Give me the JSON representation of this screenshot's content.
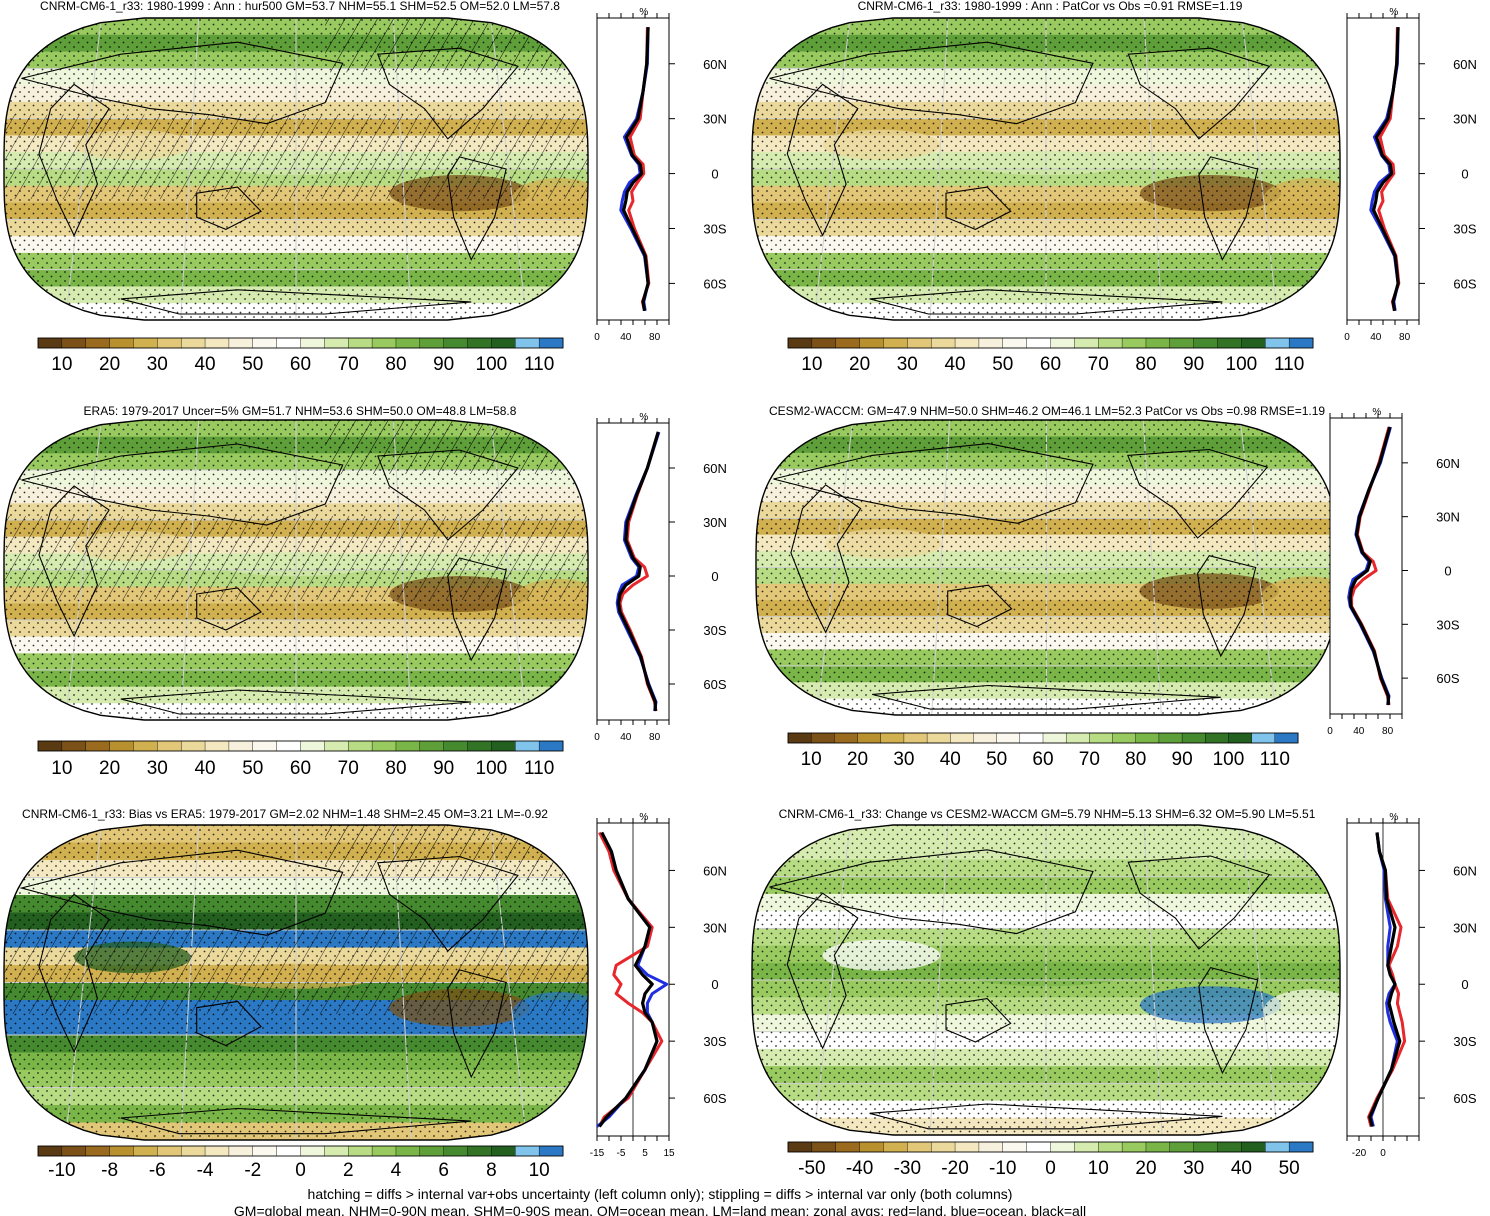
{
  "colors": {
    "land": "#e8262b",
    "ocean": "#1f2ee0",
    "all": "#000000",
    "map_frame": "#000000",
    "hatch": "#000000",
    "stipple": "#000000"
  },
  "palettes": {
    "abs": [
      "#5a3a12",
      "#7b5118",
      "#9a6b1e",
      "#b8902e",
      "#d1b04f",
      "#e1c777",
      "#ebd99b",
      "#f3e8c0",
      "#f7f0dc",
      "#fbf8ef",
      "#ffffff",
      "#eef6dc",
      "#d6ebb0",
      "#b7dc83",
      "#98ca5f",
      "#79b547",
      "#5f9f39",
      "#468a2f",
      "#327326",
      "#235f1f",
      "#80c4ec",
      "#2b79c4"
    ],
    "bias": [
      "#5a3a12",
      "#7b5118",
      "#9a6b1e",
      "#b8902e",
      "#d1b04f",
      "#e1c777",
      "#ebd99b",
      "#f3e8c0",
      "#f7f0dc",
      "#fbf8ef",
      "#ffffff",
      "#eef6dc",
      "#d6ebb0",
      "#b7dc83",
      "#98ca5f",
      "#79b547",
      "#5f9f39",
      "#468a2f",
      "#327326",
      "#235f1f",
      "#80c4ec",
      "#2b79c4"
    ],
    "change": [
      "#5a3a12",
      "#7b5118",
      "#9a6b1e",
      "#b8902e",
      "#d1b04f",
      "#e1c777",
      "#ebd99b",
      "#f3e8c0",
      "#f7f0dc",
      "#fbf8ef",
      "#ffffff",
      "#eef6dc",
      "#d6ebb0",
      "#b7dc83",
      "#98ca5f",
      "#79b547",
      "#5f9f39",
      "#468a2f",
      "#327326",
      "#235f1f",
      "#80c4ec",
      "#2b79c4"
    ]
  },
  "chart_data": [
    {
      "type": "heatmap",
      "projection": "Robinson",
      "title": "CNRM-CM6-1_r33: 1980-1999 : Ann : hur500 GM=53.7 NHM=55.1 SHM=52.5 OM=52.0 LM=57.8",
      "colorbar_ticks": [
        "10",
        "20",
        "30",
        "40",
        "50",
        "60",
        "70",
        "80",
        "90",
        "100",
        "110"
      ],
      "hatching": true,
      "stippling": true,
      "zonal": {
        "type": "line",
        "unit": "%",
        "xlim": [
          0,
          100
        ],
        "xticks": [
          "0",
          "40",
          "80"
        ],
        "ylim": [
          -80,
          85
        ],
        "lat_ticks": [
          "60N",
          "30N",
          "0",
          "30S",
          "60S"
        ],
        "lat": [
          80,
          60,
          45,
          30,
          20,
          10,
          5,
          0,
          -5,
          -10,
          -15,
          -20,
          -30,
          -45,
          -60,
          -70,
          -75
        ],
        "series": [
          {
            "name": "land",
            "values": [
              70,
              69,
              64,
              60,
              46,
              52,
              64,
              65,
              56,
              48,
              50,
              44,
              52,
              68,
              72,
              63,
              66
            ]
          },
          {
            "name": "ocean",
            "values": [
              71,
              70,
              64,
              55,
              38,
              48,
              58,
              60,
              45,
              38,
              35,
              33,
              47,
              66,
              71,
              65,
              67
            ]
          },
          {
            "name": "all",
            "values": [
              71,
              69,
              64,
              57,
              41,
              49,
              60,
              62,
              50,
              42,
              40,
              37,
              49,
              67,
              71,
              64,
              66
            ]
          }
        ]
      }
    },
    {
      "type": "heatmap",
      "projection": "Robinson",
      "title": "CNRM-CM6-1_r33: 1980-1999 : Ann : PatCor vs Obs =0.91 RMSE=1.19",
      "colorbar_ticks": [
        "10",
        "20",
        "30",
        "40",
        "50",
        "60",
        "70",
        "80",
        "90",
        "100",
        "110"
      ],
      "hatching": false,
      "stippling": true,
      "zonal": {
        "type": "line",
        "unit": "%",
        "xlim": [
          0,
          100
        ],
        "xticks": [
          "0",
          "40",
          "80"
        ],
        "ylim": [
          -80,
          85
        ],
        "lat_ticks": [
          "60N",
          "30N",
          "0",
          "30S",
          "60S"
        ],
        "lat": [
          80,
          60,
          45,
          30,
          20,
          10,
          5,
          0,
          -5,
          -10,
          -15,
          -20,
          -30,
          -45,
          -60,
          -70,
          -75
        ],
        "series": [
          {
            "name": "land",
            "values": [
              70,
              69,
              64,
              60,
              46,
              52,
              64,
              65,
              56,
              48,
              50,
              44,
              52,
              68,
              72,
              63,
              66
            ]
          },
          {
            "name": "ocean",
            "values": [
              71,
              70,
              64,
              55,
              38,
              48,
              58,
              60,
              45,
              38,
              35,
              33,
              47,
              66,
              71,
              65,
              67
            ]
          },
          {
            "name": "all",
            "values": [
              71,
              69,
              64,
              57,
              41,
              49,
              60,
              62,
              50,
              42,
              40,
              37,
              49,
              67,
              71,
              64,
              66
            ]
          }
        ]
      }
    },
    {
      "type": "heatmap",
      "projection": "Robinson",
      "title": "ERA5: 1979-2017 Uncer=5% GM=51.7 NHM=53.6 SHM=50.0 OM=48.8 LM=58.8",
      "colorbar_ticks": [
        "10",
        "20",
        "30",
        "40",
        "50",
        "60",
        "70",
        "80",
        "90",
        "100",
        "110"
      ],
      "hatching": true,
      "stippling": true,
      "zonal": {
        "type": "line",
        "unit": "%",
        "xlim": [
          0,
          100
        ],
        "xticks": [
          "0",
          "40",
          "80"
        ],
        "ylim": [
          -80,
          85
        ],
        "lat_ticks": [
          "60N",
          "30N",
          "0",
          "30S",
          "60S"
        ],
        "lat": [
          80,
          60,
          45,
          30,
          20,
          10,
          5,
          0,
          -5,
          -10,
          -15,
          -20,
          -30,
          -45,
          -60,
          -70,
          -75
        ],
        "series": [
          {
            "name": "land",
            "values": [
              85,
              70,
              56,
              44,
              42,
              52,
              66,
              70,
              50,
              36,
              32,
              34,
              46,
              62,
              70,
              80,
              82
            ]
          },
          {
            "name": "ocean",
            "values": [
              86,
              70,
              54,
              40,
              38,
              48,
              58,
              55,
              35,
              30,
              28,
              30,
              42,
              60,
              72,
              82,
              80
            ]
          },
          {
            "name": "all",
            "values": [
              85,
              70,
              55,
              42,
              40,
              50,
              60,
              58,
              40,
              32,
              30,
              32,
              44,
              61,
              71,
              81,
              81
            ]
          }
        ]
      }
    },
    {
      "type": "heatmap",
      "projection": "Robinson",
      "title": "CESM2-WACCM: GM=47.9 NHM=50.0 SHM=46.2 OM=46.1 LM=52.3 PatCor vs Obs =0.98 RMSE=1.19",
      "colorbar_ticks": [
        "10",
        "20",
        "30",
        "40",
        "50",
        "60",
        "70",
        "80",
        "90",
        "100",
        "110"
      ],
      "hatching": false,
      "stippling": true,
      "zonal": {
        "type": "line",
        "unit": "%",
        "xlim": [
          0,
          100
        ],
        "xticks": [
          "0",
          "40",
          "80"
        ],
        "ylim": [
          -80,
          85
        ],
        "lat_ticks": [
          "60N",
          "30N",
          "0",
          "30S",
          "60S"
        ],
        "lat": [
          80,
          60,
          45,
          30,
          20,
          10,
          5,
          0,
          -5,
          -10,
          -15,
          -20,
          -30,
          -45,
          -60,
          -70,
          -75
        ],
        "series": [
          {
            "name": "land",
            "values": [
              82,
              68,
              55,
              42,
              38,
              46,
              60,
              64,
              46,
              34,
              30,
              30,
              44,
              62,
              70,
              80,
              82
            ]
          },
          {
            "name": "ocean",
            "values": [
              84,
              70,
              54,
              40,
              36,
              44,
              54,
              50,
              32,
              28,
              26,
              28,
              42,
              60,
              72,
              82,
              80
            ]
          },
          {
            "name": "all",
            "values": [
              83,
              69,
              54,
              41,
              37,
              45,
              56,
              52,
              36,
              30,
              28,
              29,
              43,
              61,
              71,
              81,
              81
            ]
          }
        ]
      }
    },
    {
      "type": "heatmap",
      "projection": "Robinson",
      "title": "CNRM-CM6-1_r33: Bias vs ERA5: 1979-2017 GM=2.02 NHM=1.48 SHM=2.45 OM=3.21 LM=-0.92",
      "colorbar_ticks": [
        "-10",
        "-8",
        "-6",
        "-4",
        "-2",
        "0",
        "2",
        "4",
        "6",
        "8",
        "10"
      ],
      "hatching": true,
      "stippling": true,
      "zonal": {
        "type": "line",
        "unit": "%",
        "xlim": [
          -15,
          15
        ],
        "xticks": [
          "-15",
          "-5",
          "5",
          "15"
        ],
        "ylim": [
          -80,
          85
        ],
        "lat_ticks": [
          "60N",
          "30N",
          "0",
          "30S",
          "60S"
        ],
        "lat": [
          80,
          70,
          60,
          45,
          30,
          20,
          10,
          5,
          0,
          -5,
          -10,
          -15,
          -20,
          -30,
          -45,
          -60,
          -70,
          -75
        ],
        "series": [
          {
            "name": "land",
            "values": [
              -14,
              -10,
              -8,
              -2,
              8,
              6,
              -7,
              -8,
              -5,
              -7,
              -2,
              4,
              8,
              12,
              5,
              -2,
              -12,
              -14
            ]
          },
          {
            "name": "ocean",
            "values": [
              -13,
              -9,
              -7,
              -2,
              7,
              5,
              2,
              6,
              14,
              8,
              6,
              6,
              8,
              10,
              5,
              -3,
              -10,
              -15
            ]
          },
          {
            "name": "all",
            "values": [
              -13,
              -9,
              -7,
              -2,
              7,
              5,
              1,
              4,
              8,
              5,
              4,
              5,
              8,
              10,
              5,
              -3,
              -11,
              -14
            ]
          }
        ]
      }
    },
    {
      "type": "heatmap",
      "projection": "Robinson",
      "title": "CNRM-CM6-1_r33: Change vs CESM2-WACCM GM=5.79 NHM=5.13 SHM=6.32 OM=5.90 LM=5.51",
      "colorbar_ticks": [
        "-50",
        "-40",
        "-30",
        "-20",
        "-10",
        "0",
        "10",
        "20",
        "30",
        "40",
        "50"
      ],
      "hatching": false,
      "stippling": true,
      "zonal": {
        "type": "line",
        "unit": "%",
        "xlim": [
          -30,
          30
        ],
        "xticks": [
          "-20",
          "0"
        ],
        "ylim": [
          -80,
          85
        ],
        "lat_ticks": [
          "60N",
          "30N",
          "0",
          "30S",
          "60S"
        ],
        "lat": [
          80,
          70,
          60,
          45,
          30,
          20,
          10,
          5,
          0,
          -5,
          -10,
          -15,
          -20,
          -30,
          -45,
          -60,
          -70,
          -75
        ],
        "series": [
          {
            "name": "land",
            "values": [
              -5,
              -3,
              2,
              4,
              15,
              12,
              5,
              8,
              10,
              13,
              12,
              14,
              16,
              18,
              8,
              -5,
              -12,
              -10
            ]
          },
          {
            "name": "ocean",
            "values": [
              -5,
              -3,
              1,
              2,
              6,
              4,
              4,
              6,
              10,
              5,
              3,
              4,
              6,
              12,
              7,
              -4,
              -10,
              -8
            ]
          },
          {
            "name": "all",
            "values": [
              -5,
              -3,
              2,
              3,
              10,
              7,
              4,
              6,
              10,
              7,
              5,
              7,
              9,
              14,
              7,
              -4,
              -11,
              -9
            ]
          }
        ]
      }
    }
  ],
  "footer": {
    "line1": "hatching = diffs > internal var+obs uncertainty (left column only); stippling = diffs > internal var only (both columns)",
    "line2": "GM=global mean, NHM=0-90N mean, SHM=0-90S mean, OM=ocean mean, LM=land mean; zonal avgs: red=land, blue=ocean, black=all"
  }
}
